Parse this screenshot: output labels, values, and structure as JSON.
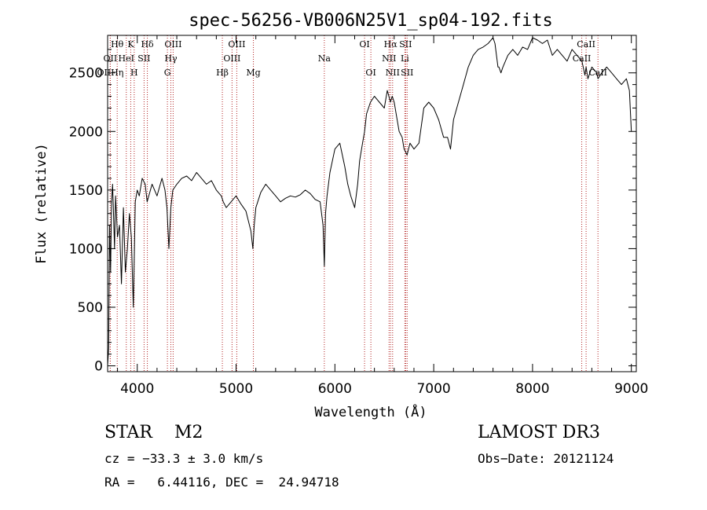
{
  "chart_data": {
    "type": "line",
    "title": "spec-56256-VB006N25V1_sp04-192.fits",
    "xlabel": "Wavelength (Å)",
    "ylabel": "Flux (relative)",
    "xlim": [
      3700,
      9050
    ],
    "ylim": [
      -50,
      2820
    ],
    "xticks": [
      4000,
      5000,
      6000,
      7000,
      8000,
      9000
    ],
    "yticks": [
      0,
      500,
      1000,
      1500,
      2000,
      2500
    ],
    "grid": false,
    "line_color": "#000000",
    "marker_color": "#b22222",
    "spectrum": {
      "x": [
        3700,
        3710,
        3720,
        3730,
        3740,
        3750,
        3760,
        3770,
        3780,
        3800,
        3820,
        3840,
        3860,
        3880,
        3900,
        3920,
        3940,
        3960,
        3970,
        3980,
        4000,
        4020,
        4050,
        4080,
        4100,
        4150,
        4200,
        4250,
        4280,
        4300,
        4320,
        4340,
        4360,
        4400,
        4450,
        4500,
        4550,
        4600,
        4650,
        4700,
        4750,
        4800,
        4850,
        4870,
        4900,
        4950,
        5000,
        5050,
        5100,
        5150,
        5170,
        5183,
        5200,
        5250,
        5300,
        5350,
        5400,
        5450,
        5500,
        5550,
        5600,
        5650,
        5700,
        5750,
        5800,
        5850,
        5880,
        5893,
        5905,
        5920,
        5950,
        6000,
        6050,
        6100,
        6130,
        6160,
        6200,
        6230,
        6250,
        6280,
        6300,
        6320,
        6360,
        6400,
        6450,
        6500,
        6530,
        6563,
        6580,
        6600,
        6620,
        6650,
        6680,
        6700,
        6730,
        6760,
        6800,
        6850,
        6900,
        6950,
        7000,
        7050,
        7100,
        7140,
        7170,
        7200,
        7250,
        7300,
        7350,
        7400,
        7450,
        7500,
        7550,
        7600,
        7620,
        7650,
        7660,
        7680,
        7700,
        7750,
        7800,
        7850,
        7900,
        7950,
        8000,
        8050,
        8100,
        8150,
        8200,
        8250,
        8300,
        8350,
        8400,
        8450,
        8500,
        8530,
        8542,
        8560,
        8600,
        8650,
        8662,
        8700,
        8750,
        8800,
        8850,
        8900,
        8950,
        8980,
        9000
      ],
      "y": [
        0,
        150,
        1200,
        800,
        1400,
        1550,
        1300,
        1000,
        1450,
        1100,
        1200,
        700,
        1350,
        800,
        1000,
        1300,
        1100,
        500,
        950,
        1400,
        1500,
        1450,
        1600,
        1550,
        1400,
        1550,
        1450,
        1600,
        1500,
        1350,
        1000,
        1350,
        1500,
        1550,
        1600,
        1620,
        1580,
        1650,
        1600,
        1550,
        1580,
        1500,
        1450,
        1400,
        1350,
        1400,
        1450,
        1380,
        1320,
        1150,
        1000,
        1200,
        1350,
        1480,
        1550,
        1500,
        1450,
        1400,
        1430,
        1450,
        1440,
        1460,
        1500,
        1470,
        1420,
        1400,
        1200,
        850,
        1300,
        1450,
        1650,
        1850,
        1900,
        1700,
        1550,
        1450,
        1350,
        1550,
        1750,
        1900,
        2000,
        2150,
        2250,
        2300,
        2250,
        2200,
        2350,
        2250,
        2300,
        2250,
        2150,
        2000,
        1950,
        1850,
        1800,
        1900,
        1850,
        1900,
        2200,
        2250,
        2200,
        2100,
        1950,
        1950,
        1850,
        2100,
        2250,
        2400,
        2550,
        2650,
        2700,
        2720,
        2750,
        2800,
        2750,
        2550,
        2550,
        2500,
        2550,
        2650,
        2700,
        2650,
        2720,
        2700,
        2800,
        2780,
        2750,
        2780,
        2650,
        2700,
        2650,
        2600,
        2700,
        2650,
        2600,
        2480,
        2550,
        2450,
        2550,
        2500,
        2450,
        2500,
        2550,
        2500,
        2450,
        2400,
        2450,
        2350,
        2000
      ]
    },
    "line_markers": [
      {
        "label": "Hθ",
        "x": 3797,
        "row": 0
      },
      {
        "label": "OII",
        "x": 3727,
        "row": 1
      },
      {
        "label": "OIIHη",
        "x": 3727,
        "row": 2
      },
      {
        "label": "K",
        "x": 3934,
        "row": 0
      },
      {
        "label": "HeI",
        "x": 3889,
        "row": 1
      },
      {
        "label": "SII",
        "x": 4069,
        "row": 1
      },
      {
        "label": "H",
        "x": 3969,
        "row": 2
      },
      {
        "label": "Hδ",
        "x": 4102,
        "row": 0
      },
      {
        "label": "OIII",
        "x": 4363,
        "row": 0
      },
      {
        "label": "Hγ",
        "x": 4340,
        "row": 1
      },
      {
        "label": "G",
        "x": 4305,
        "row": 2
      },
      {
        "label": "OIII",
        "x": 5007,
        "row": 0
      },
      {
        "label": "OIII",
        "x": 4959,
        "row": 1
      },
      {
        "label": "Hβ",
        "x": 4861,
        "row": 2
      },
      {
        "label": "Mg",
        "x": 5175,
        "row": 2
      },
      {
        "label": "Na",
        "x": 5893,
        "row": 1
      },
      {
        "label": "OI",
        "x": 6300,
        "row": 0
      },
      {
        "label": "OI",
        "x": 6364,
        "row": 2
      },
      {
        "label": "Hα",
        "x": 6563,
        "row": 0
      },
      {
        "label": "SII",
        "x": 6716,
        "row": 0
      },
      {
        "label": "NII",
        "x": 6548,
        "row": 1
      },
      {
        "label": "Li",
        "x": 6708,
        "row": 1
      },
      {
        "label": "NII",
        "x": 6584,
        "row": 2
      },
      {
        "label": "SII",
        "x": 6731,
        "row": 2
      },
      {
        "label": "CaII",
        "x": 8542,
        "row": 0
      },
      {
        "label": "CaII",
        "x": 8498,
        "row": 1
      },
      {
        "label": "CaII",
        "x": 8662,
        "row": 2
      }
    ]
  },
  "info": {
    "class_line": "STAR    M2",
    "survey": "LAMOST DR3",
    "velocity": "cz = −33.3 ± 3.0 km/s",
    "obs_date": "Obs−Date: 20121124",
    "coords": "RA =   6.44116, DEC =  24.94718"
  }
}
